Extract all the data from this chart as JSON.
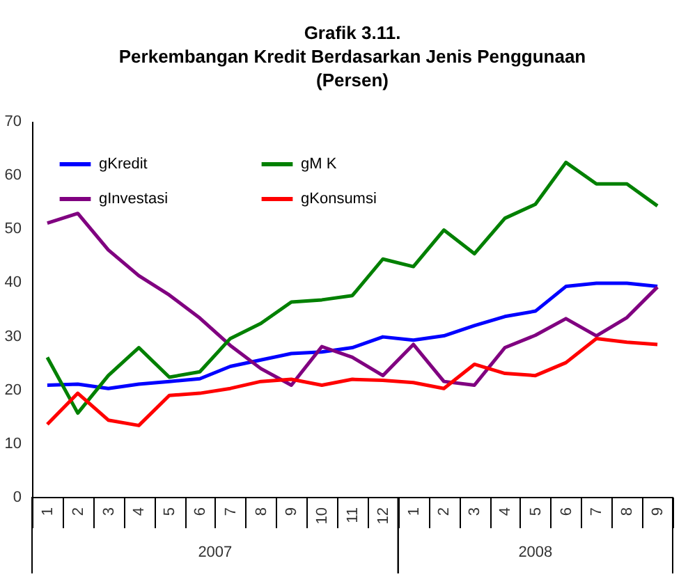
{
  "chart_data": {
    "type": "line",
    "title": "Grafik 3.11.\nPerkembangan Kredit Berdasarkan Jenis Penggunaan\n(Persen)",
    "categories": [
      "1",
      "2",
      "3",
      "4",
      "5",
      "6",
      "7",
      "8",
      "9",
      "10",
      "11",
      "12",
      "1",
      "2",
      "3",
      "4",
      "5",
      "6",
      "7",
      "8",
      "9"
    ],
    "annotations": [
      "2007",
      "2008"
    ],
    "ylim": [
      0,
      70
    ],
    "yticks": [
      0,
      10,
      20,
      30,
      40,
      50,
      60,
      70
    ],
    "grid": false,
    "legend": "top left",
    "marker": "none",
    "line_style": "solid",
    "series": [
      {
        "name": "gKredit",
        "color": "#0000ff",
        "values": [
          20.8,
          21,
          20.2,
          21,
          21.5,
          22,
          24.3,
          25.5,
          26.7,
          27,
          27.8,
          29.8,
          29.2,
          30,
          31.9,
          33.6,
          34.6,
          39.2,
          39.8,
          39.8,
          39.2
        ]
      },
      {
        "name": "gInvestasi",
        "color": "#800080",
        "values": [
          51,
          52.8,
          46,
          41.2,
          37.6,
          33.3,
          28.2,
          23.9,
          20.8,
          28,
          26,
          22.6,
          28.4,
          21.5,
          20.8,
          27.8,
          30.1,
          33.2,
          30,
          33.4,
          39.1
        ]
      },
      {
        "name": "gM K",
        "color": "#008000",
        "values": [
          26,
          15.6,
          22.6,
          27.8,
          22.3,
          23.3,
          29.5,
          32.3,
          36.3,
          36.7,
          37.5,
          44.3,
          42.9,
          49.7,
          45.3,
          51.9,
          54.5,
          62.3,
          58.3,
          58.3,
          54.2
        ]
      },
      {
        "name": "gKonsumsi",
        "color": "#ff0000",
        "values": [
          13.5,
          19.3,
          14.3,
          13.3,
          18.9,
          19.3,
          20.2,
          21.5,
          21.9,
          20.8,
          21.9,
          21.7,
          21.3,
          20.2,
          24.7,
          23,
          22.6,
          25,
          29.5,
          28.8,
          28.4
        ]
      }
    ]
  }
}
